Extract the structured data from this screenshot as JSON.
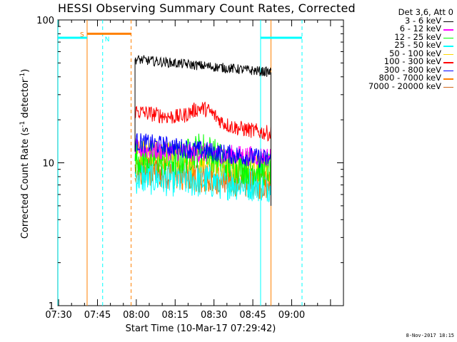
{
  "title": "HESSI Observing Summary Count Rates, Corrected",
  "xlabel": "Start Time (10-Mar-17 07:29:42)",
  "ylabel": "Corrected Count Rate (s",
  "ylabel_sup1": "-1",
  "ylabel_mid": " detector",
  "ylabel_sup2": "-1",
  "ylabel_end": ")",
  "stamp": "8-Nov-2017 18:15",
  "legend_header": "Det 3,6, Att 0",
  "markers": {
    "saa": "S",
    "night": "N"
  },
  "chart_data": {
    "type": "line",
    "title": "HESSI Observing Summary Count Rates, Corrected",
    "xlabel": "Start Time (10-Mar-17 07:29:42)",
    "ylabel": "Corrected Count Rate (s-1 detector-1)",
    "yscale": "log",
    "ylim": [
      1,
      100
    ],
    "xlim_minutes": [
      "07:29:42",
      "09:20"
    ],
    "xticks": [
      "07:30",
      "07:45",
      "08:00",
      "08:15",
      "08:30",
      "08:45",
      "09:00"
    ],
    "yticks": [
      "1",
      "10",
      "100"
    ],
    "data_interval": [
      "07:59:30",
      "08:52:00"
    ],
    "series": [
      {
        "name": "3 - 6 keV",
        "color": "#000000",
        "start": 53,
        "end": 43
      },
      {
        "name": "6 - 12 keV",
        "color": "#ff00ff",
        "start": 12.5,
        "end": 11
      },
      {
        "name": "12 - 25 keV",
        "color": "#00ff00",
        "start": 11,
        "end": 9
      },
      {
        "name": "25 - 50 keV",
        "color": "#00ffff",
        "start": 8,
        "end": 7
      },
      {
        "name": "50 - 100 keV",
        "color": "#ffd700",
        "start": 12,
        "end": 9
      },
      {
        "name": "100 - 300 keV",
        "color": "#ff0000",
        "start": 23,
        "end": 16
      },
      {
        "name": "300 - 800 keV",
        "color": "#0000ff",
        "start": 14,
        "end": 10.5
      },
      {
        "name": "800 - 7000 keV",
        "color": "#ff8000",
        "start": 9,
        "end": 7
      },
      {
        "name": "7000 - 20000 keV",
        "color": "#d2691e",
        "start": 9,
        "end": 7
      }
    ],
    "intervals": [
      {
        "label": "S",
        "color": "#ff8000",
        "start": "07:41",
        "end": "07:58",
        "y": 80
      },
      {
        "label": "N",
        "color": "#00ffff",
        "start": "07:29:42",
        "end": "07:41",
        "y": 75
      },
      {
        "label": "",
        "color": "#00ffff",
        "start": "08:48",
        "end": "09:04",
        "y": 75
      }
    ],
    "vertical_lines": [
      {
        "time": "07:29:45",
        "color": "#00ffff",
        "style": "solid"
      },
      {
        "time": "07:41",
        "color": "#ff8000",
        "style": "solid"
      },
      {
        "time": "07:47",
        "color": "#00ffff",
        "style": "dashed"
      },
      {
        "time": "07:58",
        "color": "#ff8000",
        "style": "dashed"
      },
      {
        "time": "08:48",
        "color": "#00ffff",
        "style": "solid"
      },
      {
        "time": "08:52",
        "color": "#ff8000",
        "style": "solid"
      },
      {
        "time": "09:04",
        "color": "#00ffff",
        "style": "dashed"
      }
    ]
  }
}
